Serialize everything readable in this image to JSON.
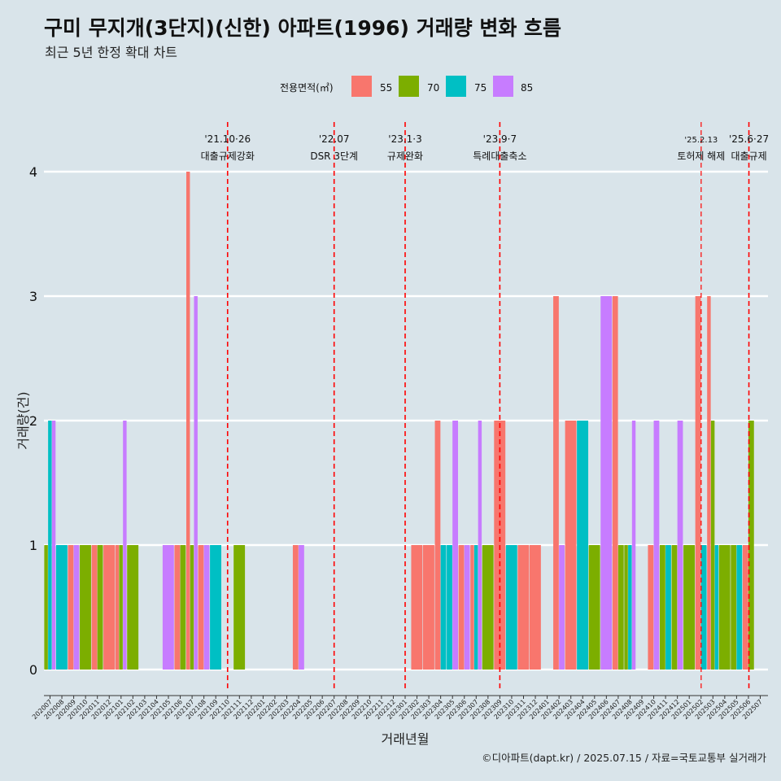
{
  "chart_data": {
    "type": "bar",
    "title": "구미 무지개(3단지)(신한) 아파트(1996) 거래량 변화 흐름",
    "subtitle": "최근 5년 한정 확대 차트",
    "xlabel": "거래년월",
    "ylabel": "거래량(건)",
    "ylim": [
      0,
      4
    ],
    "yticks": [
      0,
      1,
      2,
      3,
      4
    ],
    "caption": "©디아파트(dapt.kr) / 2025.07.15 / 자료=국토교통부 실거래가",
    "legend": {
      "title": "전용면적(㎡)",
      "entries": [
        {
          "label": "55",
          "color": "#F8766D"
        },
        {
          "label": "70",
          "color": "#7CAE00"
        },
        {
          "label": "75",
          "color": "#00BFC4"
        },
        {
          "label": "85",
          "color": "#C77CFF"
        }
      ]
    },
    "categories": [
      "202007",
      "202008",
      "202009",
      "202010",
      "202011",
      "202012",
      "202101",
      "202102",
      "202103",
      "202104",
      "202105",
      "202106",
      "202107",
      "202108",
      "202109",
      "202110",
      "202111",
      "202112",
      "202201",
      "202202",
      "202203",
      "202204",
      "202205",
      "202206",
      "202207",
      "202208",
      "202209",
      "202210",
      "202211",
      "202212",
      "202301",
      "202302",
      "202303",
      "202304",
      "202305",
      "202306",
      "202307",
      "202308",
      "202309",
      "202310",
      "202311",
      "202312",
      "202401",
      "202402",
      "202403",
      "202404",
      "202405",
      "202406",
      "202407",
      "202408",
      "202409",
      "202410",
      "202411",
      "202412",
      "202501",
      "202502",
      "202503",
      "202504",
      "202505",
      "202506",
      "202507"
    ],
    "series": [
      {
        "name": "55",
        "color": "#F8766D",
        "values": [
          0,
          0,
          1,
          0,
          1,
          1,
          1,
          0,
          0,
          0,
          0,
          1,
          4,
          1,
          0,
          0,
          0,
          0,
          0,
          0,
          0,
          1,
          0,
          0,
          0,
          0,
          0,
          0,
          0,
          0,
          0,
          1,
          1,
          2,
          0,
          1,
          1,
          0,
          2,
          0,
          1,
          1,
          0,
          3,
          2,
          0,
          0,
          0,
          3,
          0,
          0,
          1,
          0,
          0,
          0,
          3,
          3,
          0,
          0,
          1,
          0
        ]
      },
      {
        "name": "70",
        "color": "#7CAE00",
        "values": [
          1,
          0,
          0,
          1,
          1,
          0,
          1,
          1,
          0,
          0,
          0,
          1,
          1,
          0,
          0,
          0,
          1,
          0,
          0,
          0,
          0,
          0,
          0,
          0,
          0,
          0,
          0,
          0,
          0,
          0,
          0,
          0,
          0,
          0,
          0,
          0,
          0,
          1,
          0,
          0,
          0,
          0,
          0,
          0,
          0,
          0,
          1,
          0,
          1,
          1,
          0,
          0,
          1,
          1,
          1,
          0,
          2,
          1,
          1,
          2,
          0
        ]
      },
      {
        "name": "75",
        "color": "#00BFC4",
        "values": [
          2,
          1,
          0,
          0,
          0,
          0,
          0,
          0,
          0,
          0,
          0,
          0,
          0,
          0,
          1,
          0,
          0,
          0,
          0,
          0,
          0,
          0,
          0,
          0,
          0,
          0,
          0,
          0,
          0,
          0,
          0,
          0,
          0,
          1,
          1,
          0,
          1,
          0,
          0,
          1,
          0,
          0,
          0,
          0,
          0,
          2,
          0,
          0,
          0,
          1,
          0,
          0,
          1,
          0,
          0,
          1,
          1,
          0,
          1,
          0,
          0
        ]
      },
      {
        "name": "85",
        "color": "#C77CFF",
        "values": [
          2,
          0,
          1,
          0,
          0,
          0,
          2,
          0,
          0,
          0,
          1,
          0,
          3,
          1,
          0,
          0,
          0,
          0,
          0,
          0,
          0,
          1,
          0,
          0,
          0,
          0,
          0,
          0,
          0,
          0,
          0,
          0,
          0,
          0,
          2,
          1,
          2,
          0,
          0,
          0,
          0,
          0,
          0,
          1,
          0,
          0,
          0,
          3,
          0,
          2,
          0,
          2,
          0,
          2,
          0,
          0,
          0,
          0,
          0,
          0,
          0
        ]
      }
    ],
    "annotations": [
      {
        "category": "202110",
        "date": "'21.10·26",
        "label": "대출규제강화"
      },
      {
        "category": "202207",
        "date": "'22.07",
        "label": "DSR 3단계"
      },
      {
        "category": "202301",
        "date": "'23.1·3",
        "label": "규제완화"
      },
      {
        "category": "202309",
        "date": "'23.9·7",
        "label": "특례대출축소"
      },
      {
        "category": "202502",
        "date": "'25.2.13",
        "label": "토허제 해제"
      },
      {
        "category": "202506",
        "date": "'25.6·27",
        "label": "대출규제"
      }
    ]
  }
}
